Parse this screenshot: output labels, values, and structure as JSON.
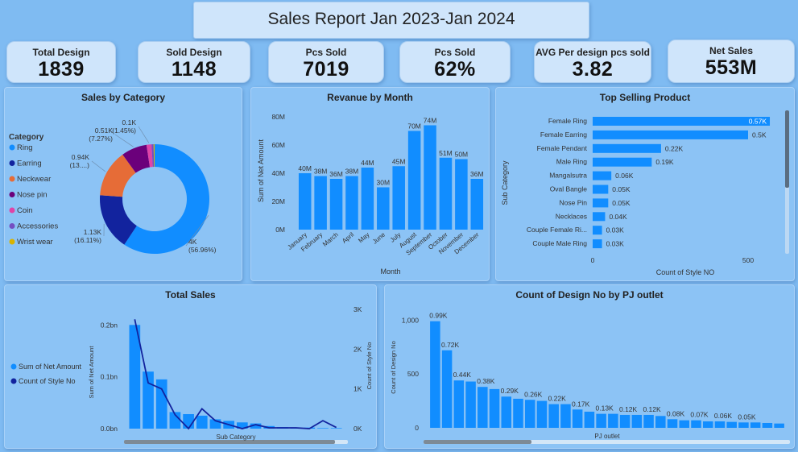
{
  "report_title": "Sales Report Jan 2023-Jan 2024",
  "kpis": [
    {
      "label": "Total Design",
      "value": "1839"
    },
    {
      "label": "Sold Design",
      "value": "1148"
    },
    {
      "label": "Pcs Sold",
      "value": "7019"
    },
    {
      "label": "Pcs Sold",
      "value": "62%"
    },
    {
      "label": "AVG Per design pcs sold",
      "value": "3.82"
    },
    {
      "label": "Net Sales",
      "value": "553M"
    }
  ],
  "colors": {
    "primary": "#118dff",
    "navy": "#12239e",
    "orange": "#e66c37",
    "purple": "#6b007b",
    "pink": "#e044a7",
    "violet": "#744ec2",
    "gold": "#d9b300"
  },
  "chart_data": [
    {
      "type": "pie",
      "title": "Sales by Category",
      "legend_title": "Category",
      "legend_position": "left",
      "categories": [
        "Ring",
        "Earring",
        "Neckwear",
        "Nose pin",
        "Coin",
        "Accessories",
        "Wrist wear"
      ],
      "values": [
        4000,
        1130,
        940,
        510,
        100,
        40,
        20
      ],
      "colors": [
        "#118dff",
        "#12239e",
        "#e66c37",
        "#6b007b",
        "#e044a7",
        "#744ec2",
        "#d9b300"
      ],
      "data_labels": [
        {
          "category": "Ring",
          "line1": "4K",
          "line2": "(56.96%)"
        },
        {
          "category": "Earring",
          "line1": "1.13K",
          "line2": "(16.11%)"
        },
        {
          "category": "Neckwear",
          "line1": "0.94K",
          "line2": "(13....)"
        },
        {
          "category": "Nose pin",
          "line1": "0.51K",
          "line2": "(7.27%)"
        },
        {
          "category": "Coin",
          "line1": "0.1K",
          "line2": "(1.45%)"
        }
      ]
    },
    {
      "type": "bar",
      "title": "Revanue by Month",
      "xlabel": "Month",
      "ylabel": "Sum of Net Amount",
      "categories": [
        "January",
        "February",
        "March",
        "April",
        "May",
        "June",
        "July",
        "August",
        "September",
        "October",
        "November",
        "December"
      ],
      "values": [
        40,
        38,
        36,
        38,
        44,
        30,
        45,
        70,
        74,
        51,
        50,
        36
      ],
      "data_labels": [
        "40M",
        "38M",
        "36M",
        "38M",
        "44M",
        "30M",
        "45M",
        "70M",
        "74M",
        "51M",
        "50M",
        "36M"
      ],
      "ylim": [
        0,
        80
      ],
      "yticks": [
        "0M",
        "20M",
        "40M",
        "60M",
        "80M"
      ]
    },
    {
      "type": "bar",
      "orientation": "horizontal",
      "title": "Top Selling Product",
      "xlabel": "Count of Style NO",
      "ylabel": "Sub Category",
      "categories": [
        "Female Ring",
        "Female Earring",
        "Female Pendant",
        "Male Ring",
        "Mangalsutra",
        "Oval Bangle",
        "Nose Pin",
        "Necklaces",
        "Couple Female Ri...",
        "Couple Male Ring"
      ],
      "values": [
        570,
        500,
        220,
        190,
        60,
        50,
        50,
        40,
        30,
        30
      ],
      "data_labels": [
        "0.57K",
        "0.5K",
        "0.22K",
        "0.19K",
        "0.06K",
        "0.05K",
        "0.05K",
        "0.04K",
        "0.03K",
        "0.03K"
      ],
      "xlim": [
        0,
        600
      ],
      "xticks": [
        "0",
        "500"
      ]
    },
    {
      "type": "bar",
      "title": "Total Sales",
      "xlabel": "Sub Category",
      "ylabel": "Sum of Net Amount",
      "y2label": "Count of Style No",
      "series": [
        {
          "name": "Sum of Net Amount",
          "type": "bar",
          "values": [
            0.2,
            0.11,
            0.095,
            0.032,
            0.028,
            0.025,
            0.018,
            0.015,
            0.012,
            0.01,
            0.005,
            0.003,
            0.002,
            0.002,
            0.001,
            0.001
          ]
        },
        {
          "name": "Count of Style No",
          "type": "line",
          "axis": "right",
          "values": [
            2750,
            1150,
            1000,
            350,
            0,
            500,
            200,
            100,
            0,
            100,
            20,
            20,
            20,
            0,
            200,
            30
          ]
        }
      ],
      "yticks": [
        "0.0bn",
        "0.1bn",
        "0.2bn"
      ],
      "ylim": [
        0,
        0.23
      ],
      "y2ticks": [
        "0K",
        "1K",
        "2K",
        "3K"
      ],
      "y2lim": [
        0,
        3000
      ],
      "legend_position": "left"
    },
    {
      "type": "bar",
      "title": "Count of Design No by PJ outlet",
      "xlabel": "PJ outlet",
      "ylabel": "Count of Design No",
      "values": [
        990,
        720,
        440,
        430,
        380,
        360,
        290,
        270,
        260,
        250,
        220,
        220,
        170,
        150,
        130,
        130,
        120,
        120,
        120,
        110,
        80,
        70,
        70,
        60,
        60,
        55,
        50,
        50,
        45,
        40
      ],
      "data_labels": [
        {
          "index": 0,
          "text": "0.99K"
        },
        {
          "index": 1,
          "text": "0.72K"
        },
        {
          "index": 2,
          "text": "0.44K"
        },
        {
          "index": 4,
          "text": "0.38K"
        },
        {
          "index": 6,
          "text": "0.29K"
        },
        {
          "index": 8,
          "text": "0.26K"
        },
        {
          "index": 10,
          "text": "0.22K"
        },
        {
          "index": 12,
          "text": "0.17K"
        },
        {
          "index": 14,
          "text": "0.13K"
        },
        {
          "index": 16,
          "text": "0.12K"
        },
        {
          "index": 18,
          "text": "0.12K"
        },
        {
          "index": 20,
          "text": "0.08K"
        },
        {
          "index": 22,
          "text": "0.07K"
        },
        {
          "index": 24,
          "text": "0.06K"
        },
        {
          "index": 26,
          "text": "0.05K"
        }
      ],
      "ylim": [
        0,
        1100
      ],
      "yticks": [
        "0",
        "500",
        "1,000"
      ]
    }
  ]
}
